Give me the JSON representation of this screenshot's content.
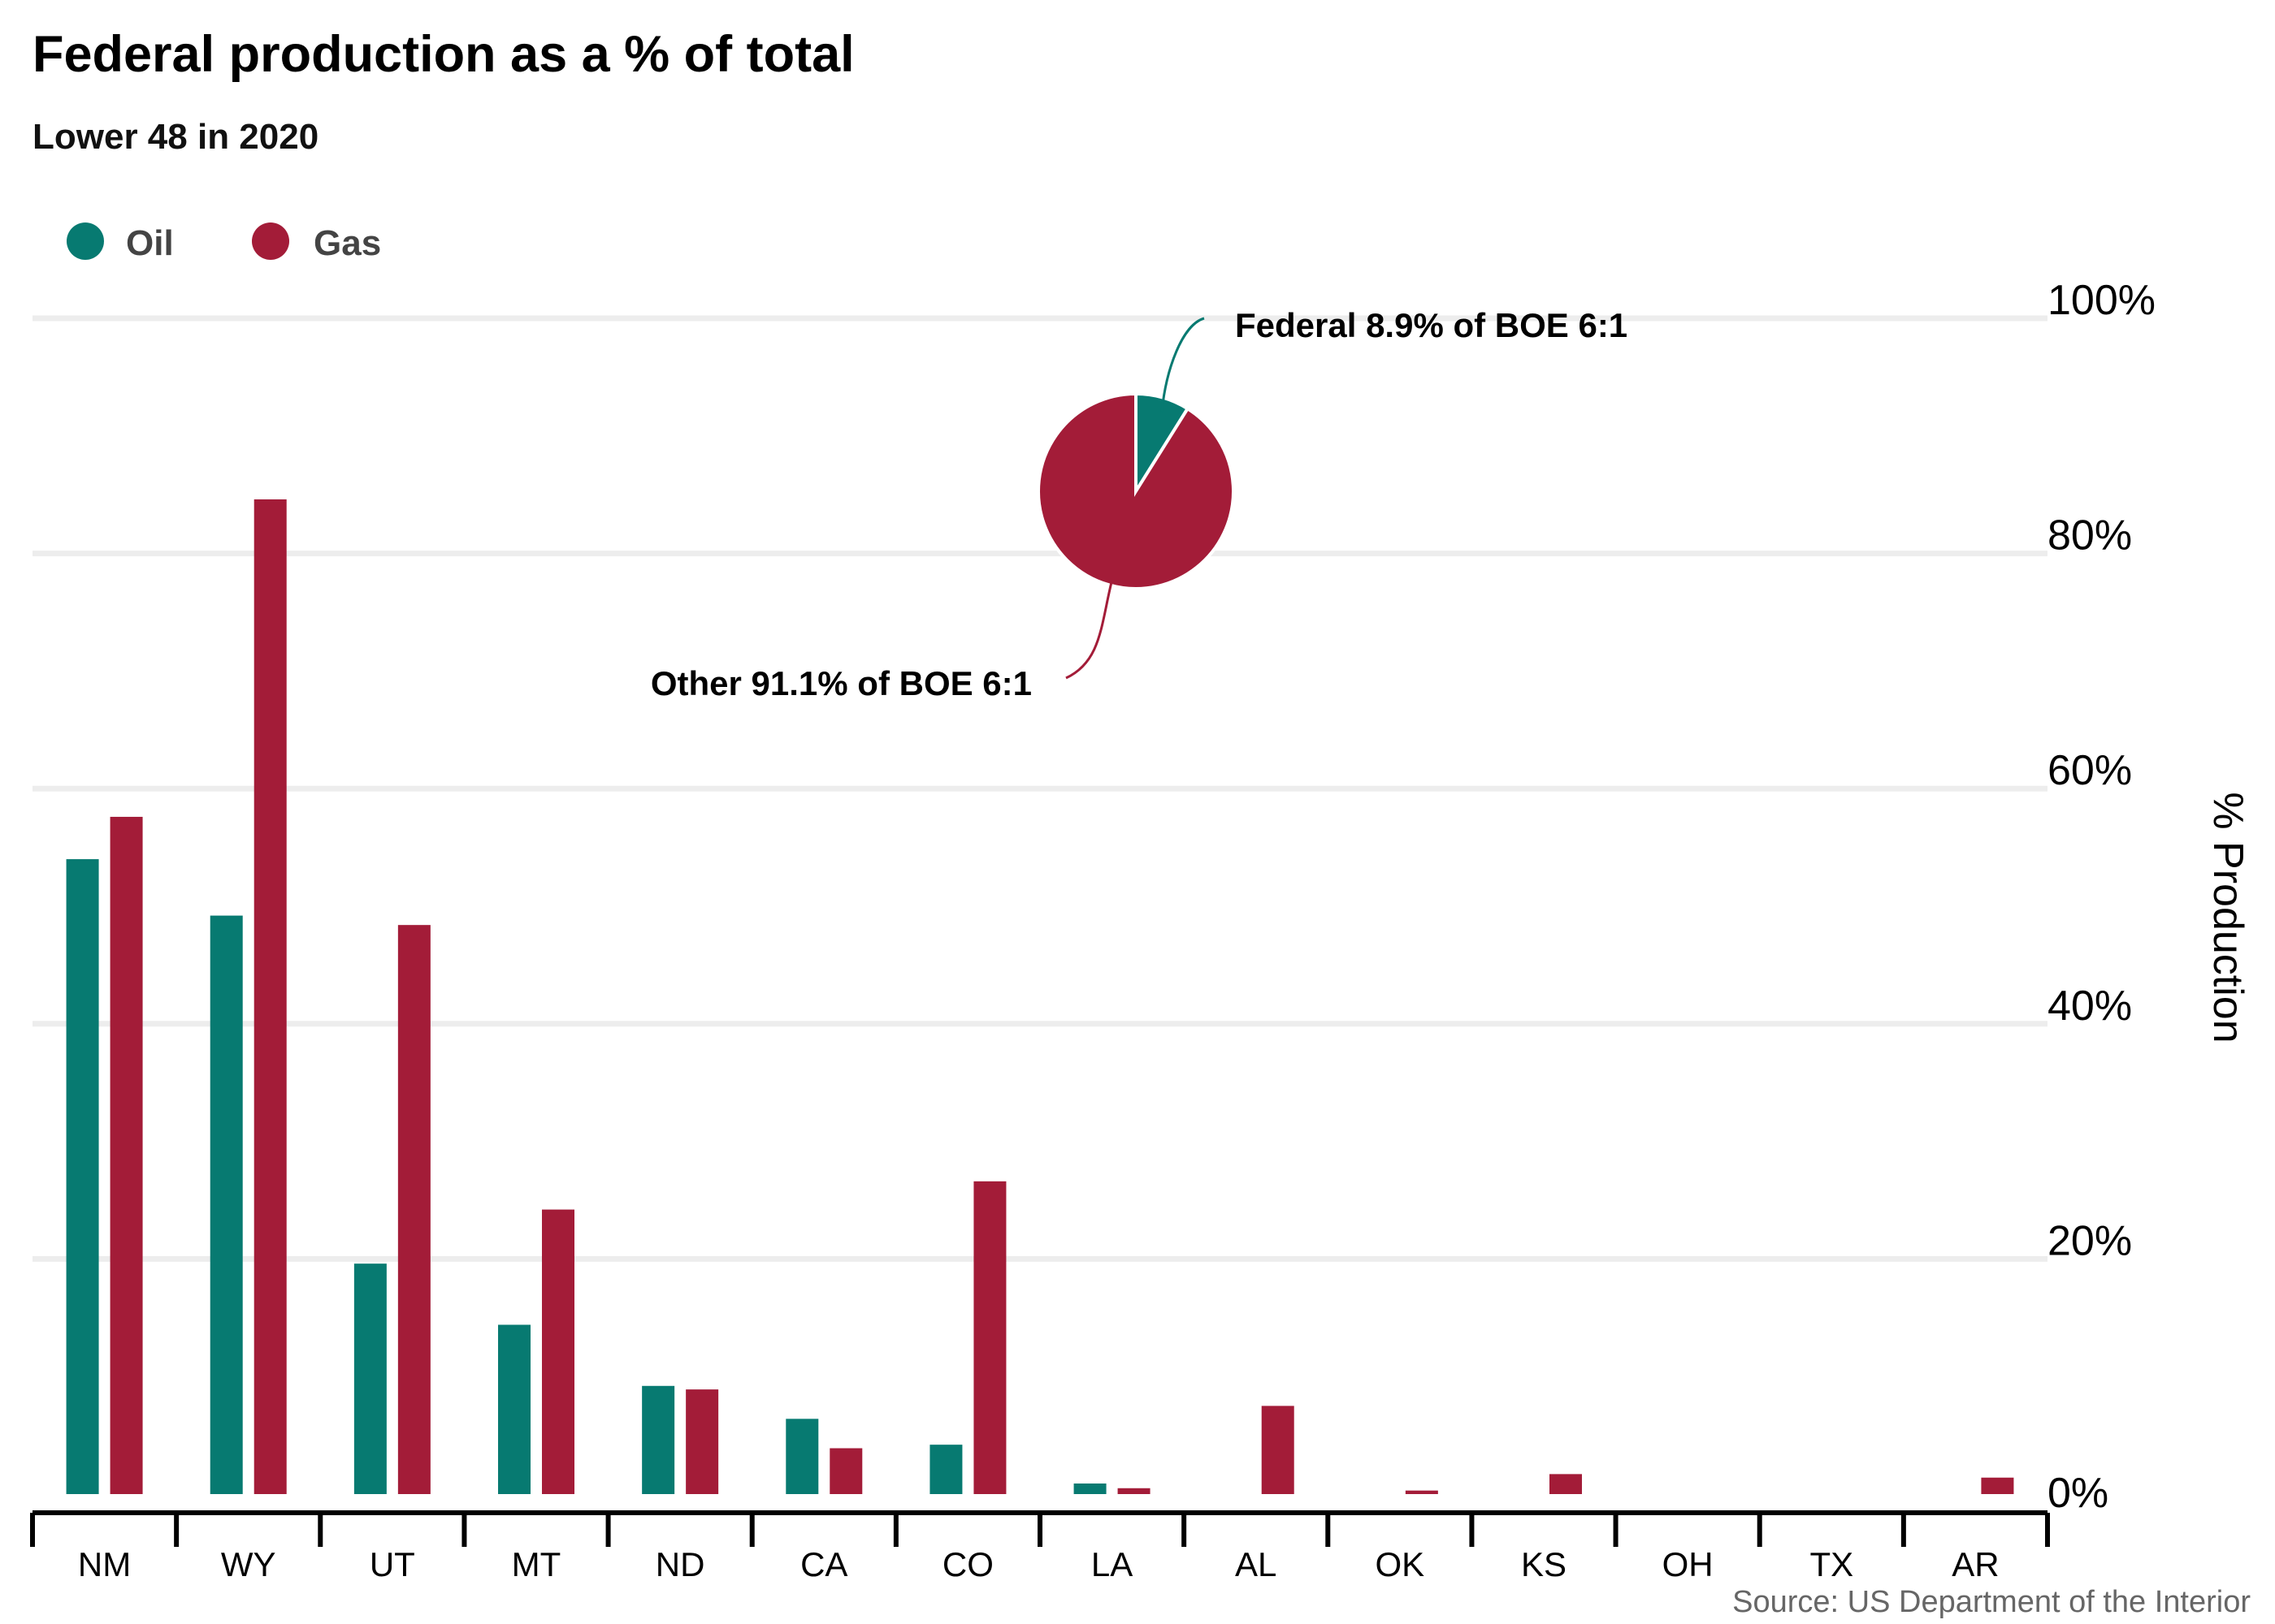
{
  "title": "Federal production as a % of total",
  "subtitle": "Lower 48 in 2020",
  "source": "Source: US Department of the Interior",
  "colors": {
    "oil": "#077A71",
    "gas": "#A31C38",
    "grid": "#EDEDED",
    "axis": "#000000"
  },
  "chart_data": {
    "type": "bar",
    "categories": [
      "NM",
      "WY",
      "UT",
      "MT",
      "ND",
      "CA",
      "CO",
      "LA",
      "AL",
      "OK",
      "KS",
      "OH",
      "TX",
      "AR"
    ],
    "series": [
      {
        "name": "Oil",
        "values": [
          54.0,
          49.2,
          19.6,
          14.4,
          9.2,
          6.4,
          4.2,
          0.9,
          0,
          0,
          0,
          0,
          0,
          0
        ]
      },
      {
        "name": "Gas",
        "values": [
          57.6,
          84.6,
          48.4,
          24.2,
          8.9,
          3.9,
          26.6,
          0.5,
          7.5,
          0.3,
          1.7,
          0,
          0,
          1.4
        ]
      }
    ],
    "ylabel": "% Production",
    "ylim": [
      0,
      100
    ],
    "yticks": [
      "0%",
      "20%",
      "40%",
      "60%",
      "80%",
      "100%"
    ],
    "ytick_values": [
      0,
      20,
      40,
      60,
      80,
      100
    ],
    "legend": [
      "Oil",
      "Gas"
    ],
    "legend_position": "top-left",
    "y_axis_side": "right",
    "inset_pie": {
      "slices": [
        {
          "name": "Federal",
          "value": 8.9,
          "label": "Federal 8.9% of BOE 6:1"
        },
        {
          "name": "Other",
          "value": 91.1,
          "label": "Other 91.1% of BOE 6:1"
        }
      ]
    }
  }
}
